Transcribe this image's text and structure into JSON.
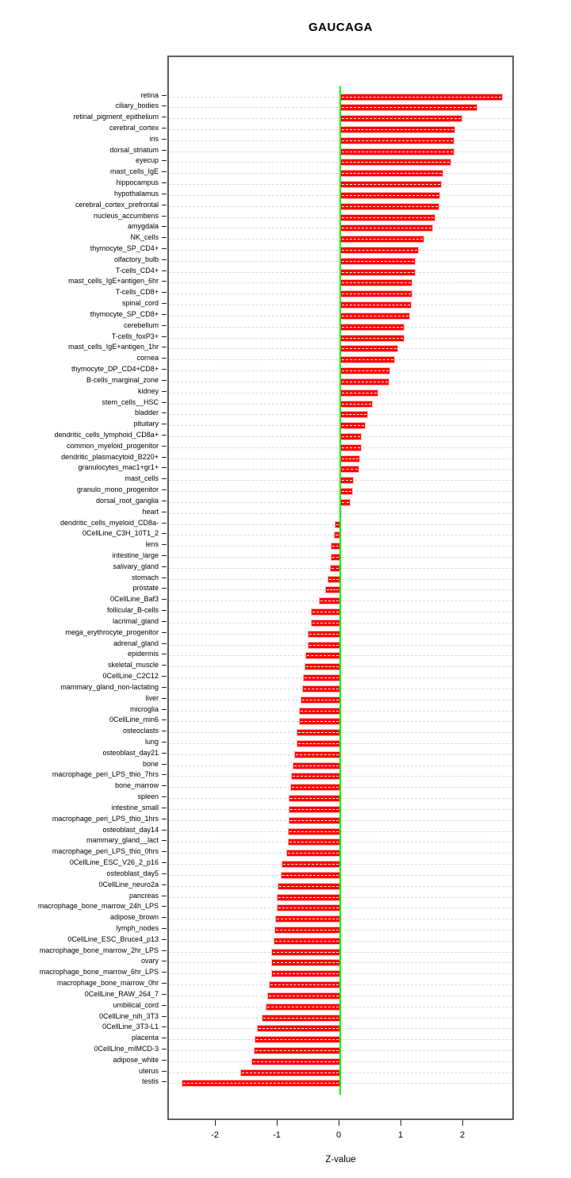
{
  "title": "GAUCAGA",
  "axis": {
    "xlabel": "Z-value"
  },
  "colors": {
    "bar": "#ff0000",
    "bar_inner_dash": "#ffffff",
    "zero_line": "#00ff00",
    "grid": "#d9d9d9",
    "panel_border": "#5f5f5f",
    "text": "#000000"
  },
  "chart_data": {
    "type": "bar",
    "orientation": "horizontal",
    "title": "GAUCAGA",
    "xlabel": "Z-value",
    "ylabel": "",
    "x_ticks": [
      "-2",
      "-1",
      "0",
      "1",
      "2"
    ],
    "x_tick_values": [
      -2,
      -1,
      0,
      1,
      2
    ],
    "xlim": [
      -2.77,
      2.84
    ],
    "grid": true,
    "legend": false,
    "zero_reference_line": 0,
    "categories": [
      "retina",
      "ciliary_bodies",
      "retinal_pigment_epithelium",
      "cerebral_cortex",
      "iris",
      "dorsal_striatum",
      "eyecup",
      "mast_cells_IgE",
      "hippocampus",
      "hypothalamus",
      "cerebral_cortex_prefrontal",
      "nucleus_accumbens",
      "amygdala",
      "NK_cells",
      "thymocyte_SP_CD4+",
      "olfactory_bulb",
      "T-cells_CD4+",
      "mast_cells_IgE+antigen_6hr",
      "T-cells_CD8+",
      "spinal_cord",
      "thymocyte_SP_CD8+",
      "cerebellum",
      "T-cells_foxP3+",
      "mast_cells_IgE+antigen_1hr",
      "cornea",
      "thymocyte_DP_CD4+CD8+",
      "B-cells_marginal_zone",
      "kidney",
      "stem_cells__HSC",
      "bladder",
      "pituitary",
      "dendritic_cells_lymphoid_CD8a+",
      "common_myeloid_progenitor",
      "dendritic_plasmacytoid_B220+",
      "granulocytes_mac1+gr1+",
      "mast_cells",
      "granulo_mono_progenitor",
      "dorsal_root_ganglia",
      "heart",
      "dendritic_cells_myeloid_CD8a-",
      "0CellLine_C3H_10T1_2",
      "lens",
      "intestine_large",
      "salivary_gland",
      "stomach",
      "prostate",
      "0CellLine_Baf3",
      "follicular_B-cells",
      "lacrimal_gland",
      "mega_erythrocyte_progenitor",
      "adrenal_gland",
      "epidermis",
      "skeletal_muscle",
      "0CellLine_C2C12",
      "mammary_gland_non-lactating",
      "liver",
      "microglia",
      "0CellLine_min6",
      "osteoclasts",
      "lung",
      "osteoblast_day21",
      "bone",
      "macrophage_peri_LPS_thio_7hrs",
      "bone_marrow",
      "spleen",
      "intestine_small",
      "macrophage_peri_LPS_thio_1hrs",
      "osteoblast_day14",
      "mammary_gland__lact",
      "macrophage_peri_LPS_thio_0hrs",
      "0CellLine_ESC_V26_2_p16",
      "osteoblast_day5",
      "0CellLine_neuro2a",
      "pancreas",
      "macrophage_bone_marrow_24h_LPS",
      "adipose_brown",
      "lymph_nodes",
      "0CellLine_ESC_Bruce4_p13",
      "macrophage_bone_marrow_2hr_LPS",
      "ovary",
      "macrophage_bone_marrow_6hr_LPS",
      "macrophage_bone_marrow_0hr",
      "0CellLine_RAW_264_7",
      "umbilical_cord",
      "0CellLine_nih_3T3",
      "0CellLine_3T3-L1",
      "placenta",
      "0CellLIne_mIMCD-3",
      "adipose_white",
      "uterus",
      "testis"
    ],
    "values": [
      2.63,
      2.22,
      1.97,
      1.86,
      1.85,
      1.85,
      1.8,
      1.67,
      1.64,
      1.61,
      1.6,
      1.54,
      1.5,
      1.36,
      1.27,
      1.22,
      1.22,
      1.17,
      1.17,
      1.15,
      1.13,
      1.04,
      1.04,
      0.94,
      0.89,
      0.81,
      0.8,
      0.61,
      0.52,
      0.45,
      0.41,
      0.35,
      0.34,
      0.32,
      0.31,
      0.22,
      0.21,
      0.17,
      0.03,
      -0.09,
      -0.1,
      -0.15,
      -0.16,
      -0.17,
      -0.21,
      -0.24,
      -0.34,
      -0.47,
      -0.48,
      -0.52,
      -0.53,
      -0.57,
      -0.58,
      -0.6,
      -0.62,
      -0.64,
      -0.67,
      -0.67,
      -0.71,
      -0.71,
      -0.75,
      -0.77,
      -0.79,
      -0.81,
      -0.83,
      -0.83,
      -0.83,
      -0.85,
      -0.85,
      -0.87,
      -0.95,
      -0.96,
      -1.01,
      -1.02,
      -1.03,
      -1.05,
      -1.07,
      -1.08,
      -1.11,
      -1.11,
      -1.12,
      -1.16,
      -1.18,
      -1.21,
      -1.27,
      -1.34,
      -1.38,
      -1.4,
      -1.44,
      -1.62,
      -2.56
    ]
  }
}
